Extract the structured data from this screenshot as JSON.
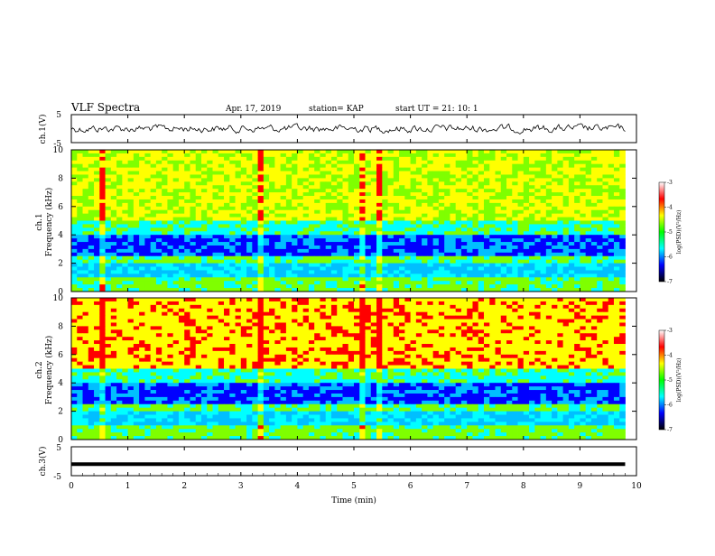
{
  "header": {
    "title": "VLF Spectra",
    "date": "Apr. 17, 2019",
    "station": "station= KAP",
    "start": "start  UT =  21: 10: 1"
  },
  "colors": {
    "spectrum": [
      "#00008b",
      "#0000ff",
      "#00bfff",
      "#00ffff",
      "#7fff00",
      "#ffff00",
      "#ff0000"
    ],
    "trace": "#000000"
  },
  "chart_data": [
    {
      "type": "line",
      "panel": "ch1-waveform",
      "ylabel": "ch.1(V)",
      "ylim": [
        -5,
        5
      ],
      "yticks": [
        "5",
        "-5"
      ],
      "xlim": [
        0,
        10
      ],
      "description_values": {
        "mean": 0,
        "amplitude_approx": 2
      }
    },
    {
      "type": "heatmap",
      "panel": "ch1-spectrogram",
      "ylabel": "ch.1\nFrequency (kHz)",
      "ylim": [
        0,
        10
      ],
      "yticks": [
        "0",
        "2",
        "4",
        "6",
        "8",
        "10"
      ],
      "xlim": [
        0,
        10
      ],
      "colorbar": {
        "label": "log(PSD)(V²/Hz)",
        "range": [
          -7,
          -3
        ],
        "ticks": [
          "-3",
          "-4",
          "-5",
          "-6",
          "-7"
        ]
      }
    },
    {
      "type": "heatmap",
      "panel": "ch2-spectrogram",
      "ylabel": "ch.2\nFrequency (kHz)",
      "ylim": [
        0,
        10
      ],
      "yticks": [
        "0",
        "2",
        "4",
        "6",
        "8",
        "10"
      ],
      "xlim": [
        0,
        10
      ],
      "colorbar": {
        "label": "log(PSD)(V²/Hz)",
        "range": [
          -7,
          -3
        ],
        "ticks": [
          "-3",
          "-4",
          "-5",
          "-6",
          "-7"
        ]
      }
    },
    {
      "type": "line",
      "panel": "ch3-waveform",
      "ylabel": "ch.3(V)",
      "ylim": [
        -5,
        5
      ],
      "yticks": [
        "5",
        "-5"
      ],
      "xlim": [
        0,
        10
      ],
      "values": [
        -1,
        -1
      ]
    }
  ],
  "xaxis": {
    "label": "Time  (min)",
    "ticks": [
      "0",
      "1",
      "2",
      "3",
      "4",
      "5",
      "6",
      "7",
      "8",
      "9",
      "10"
    ]
  },
  "labels": {
    "ch1_wave": "ch.1(V)",
    "ch1_spec_a": "ch.1",
    "ch1_spec_b": "Frequency  (kHz)",
    "ch2_spec_a": "ch.2",
    "ch2_spec_b": "Frequency  (kHz)",
    "ch3_wave": "ch.3(V)",
    "cb": "log(PSD)(V²/Hz)",
    "cb_ticks": [
      "-3",
      "-4",
      "-5",
      "-6",
      "-7"
    ]
  }
}
